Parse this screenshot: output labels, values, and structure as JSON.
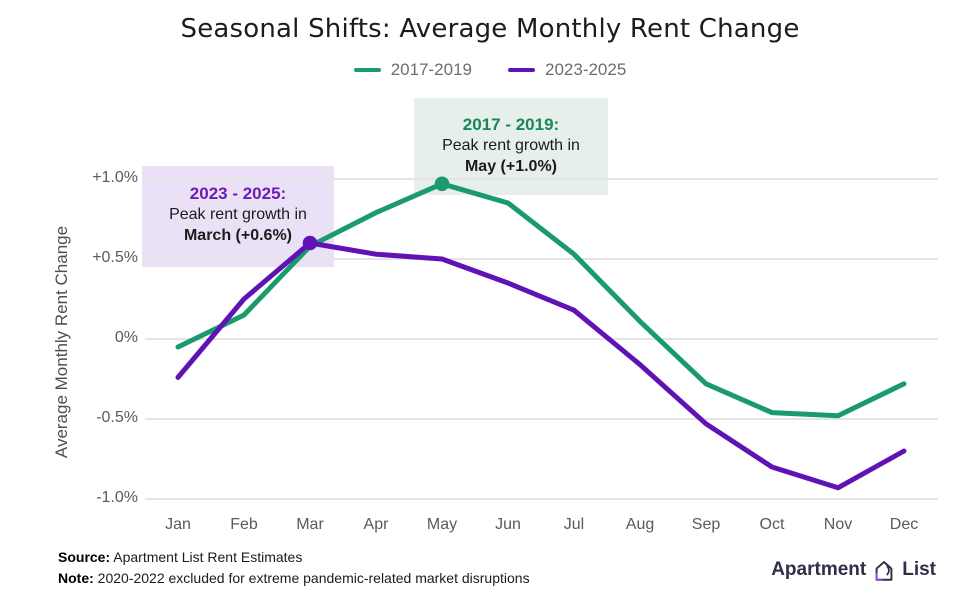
{
  "title": "Seasonal Shifts: Average Monthly Rent Change",
  "legend": [
    {
      "label": "2017-2019",
      "color": "#1a9b6d"
    },
    {
      "label": "2023-2025",
      "color": "#5f13b4"
    }
  ],
  "y_axis": {
    "label": "Average Monthly Rent Change",
    "ticks": [
      "+1.0%",
      "+0.5%",
      "0%",
      "-0.5%",
      "-1.0%"
    ]
  },
  "chart_data": {
    "type": "line",
    "categories": [
      "Jan",
      "Feb",
      "Mar",
      "Apr",
      "May",
      "Jun",
      "Jul",
      "Aug",
      "Sep",
      "Oct",
      "Nov",
      "Dec"
    ],
    "series": [
      {
        "name": "2017-2019",
        "color": "#1a9b6d",
        "values": [
          -0.05,
          0.15,
          0.58,
          0.79,
          0.97,
          0.85,
          0.53,
          0.11,
          -0.28,
          -0.46,
          -0.48,
          -0.28
        ],
        "peak": {
          "index": 4,
          "label": "May (+1.0%)"
        }
      },
      {
        "name": "2023-2025",
        "color": "#5f13b4",
        "values": [
          -0.24,
          0.25,
          0.6,
          0.53,
          0.5,
          0.35,
          0.18,
          -0.16,
          -0.53,
          -0.8,
          -0.93,
          -0.7
        ],
        "peak": {
          "index": 2,
          "label": "March (+0.6%)"
        }
      }
    ],
    "ylim": [
      -1.0,
      1.0
    ],
    "ytick_values": [
      1.0,
      0.5,
      0,
      -0.5,
      -1.0
    ],
    "grid": "horizontal",
    "legend_position": "top",
    "title": "Seasonal Shifts: Average Monthly Rent Change",
    "ylabel": "Average Monthly Rent Change"
  },
  "annotations": [
    {
      "heading": "2017 - 2019:",
      "line1": "Peak rent growth in",
      "line2": "May (+1.0%)",
      "heading_color": "#17875e",
      "bg": "#e6efe9"
    },
    {
      "heading": "2023 - 2025:",
      "line1": "Peak rent growth in",
      "line2": "March (+0.6%)",
      "heading_color": "#6d1cb4",
      "bg": "#ebe1f7"
    }
  ],
  "footer": {
    "source_label": "Source:",
    "source_text": "Apartment List Rent Estimates",
    "note_label": "Note:",
    "note_text": "2020-2022 excluded for extreme pandemic-related market disruptions"
  },
  "logo": {
    "word_left": "Apartment",
    "word_right": "List"
  }
}
